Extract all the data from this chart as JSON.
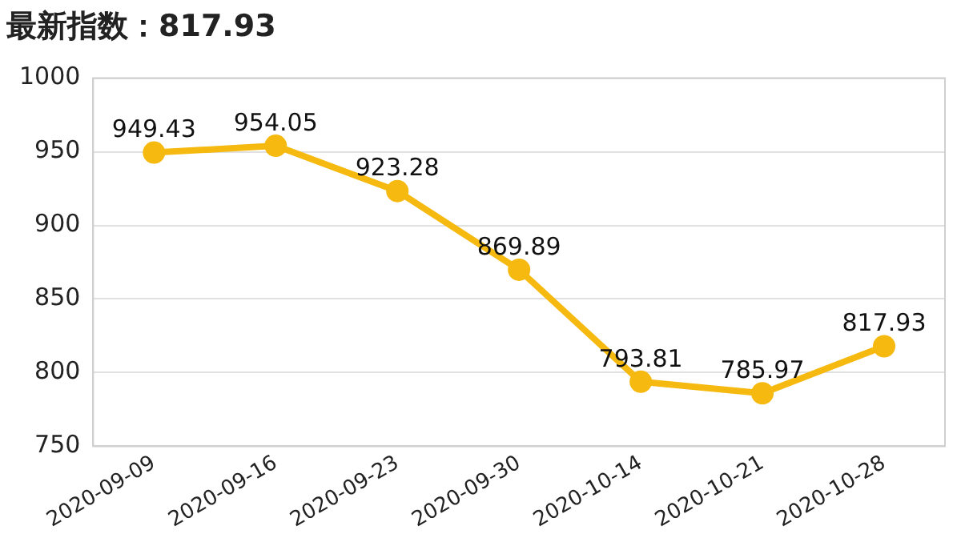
{
  "chart_data": {
    "type": "line",
    "title": "最新指数：817.93",
    "categories": [
      "2020-09-09",
      "2020-09-16",
      "2020-09-23",
      "2020-09-30",
      "2020-10-14",
      "2020-10-21",
      "2020-10-28"
    ],
    "series": [
      {
        "color": "#f5b90f",
        "values": [
          949.43,
          954.05,
          923.28,
          869.89,
          793.81,
          785.97,
          817.93
        ]
      }
    ],
    "ylim": [
      750,
      1000
    ],
    "yticks": [
      750,
      800,
      850,
      900,
      950,
      1000
    ],
    "grid": "y",
    "legend": false,
    "marker": "circle",
    "line_style": "solid",
    "data_labels": true
  }
}
